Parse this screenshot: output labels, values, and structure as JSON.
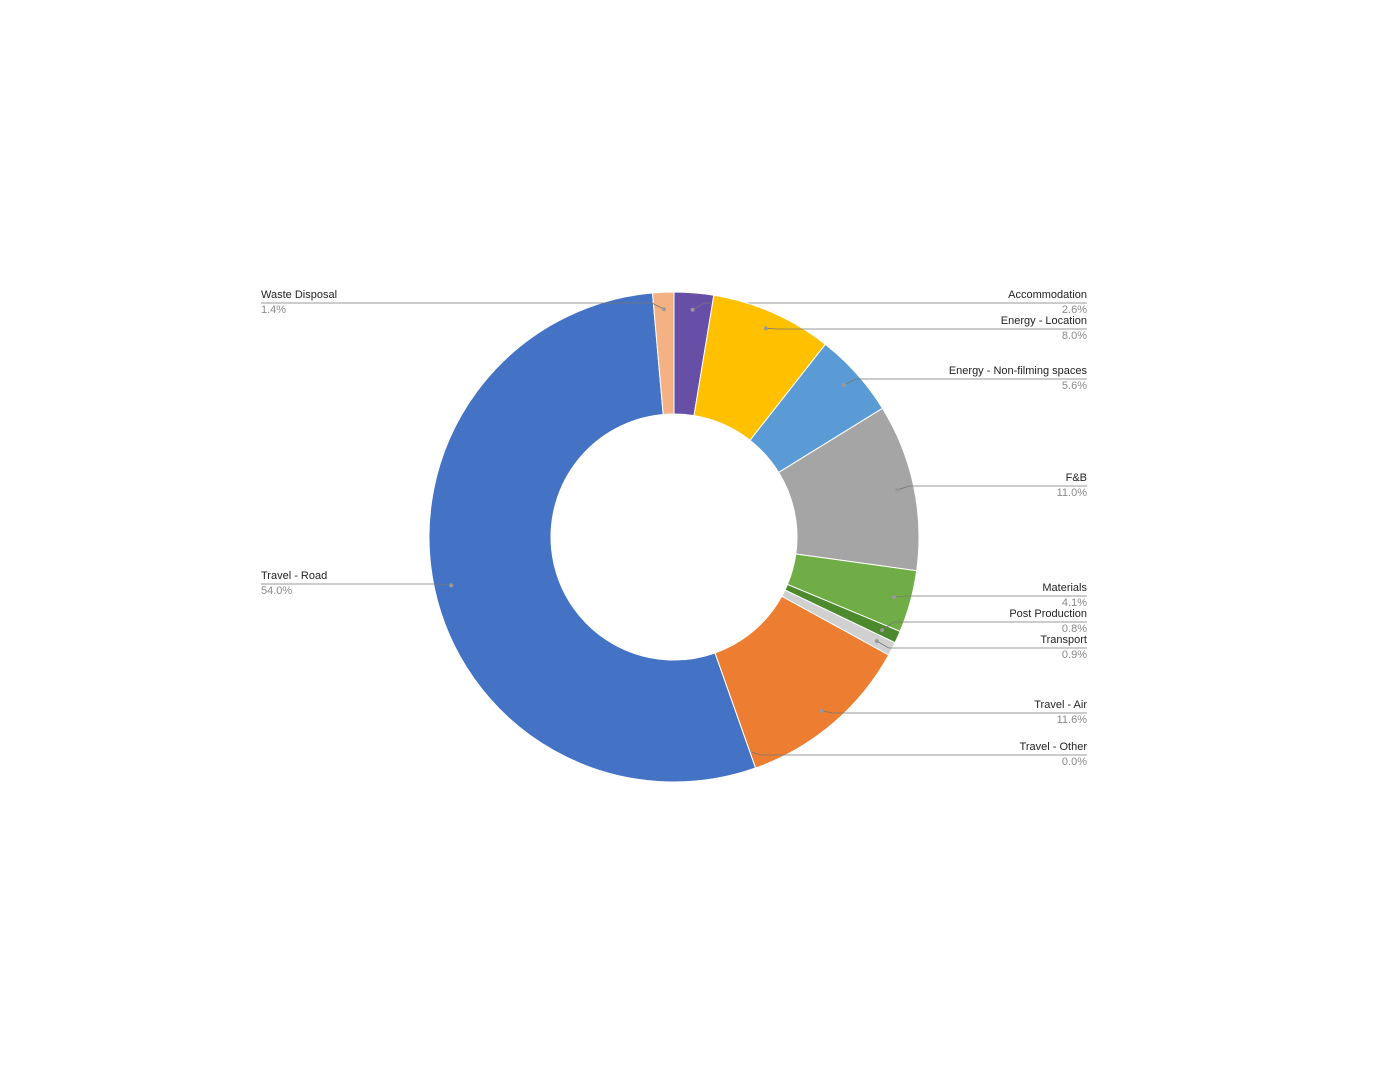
{
  "chart_data": {
    "type": "donut",
    "categories": [
      "Accommodation",
      "Energy - Location",
      "Energy - Non-filming spaces",
      "F&B",
      "Materials",
      "Post Production",
      "Transport",
      "Travel - Air",
      "Travel - Other",
      "Travel - Road",
      "Waste Disposal"
    ],
    "values": [
      2.6,
      8.0,
      5.6,
      11.0,
      4.1,
      0.8,
      0.9,
      11.6,
      0.0,
      54.0,
      1.4
    ],
    "value_labels": [
      "2.6%",
      "8.0%",
      "5.6%",
      "11.0%",
      "4.1%",
      "0.8%",
      "0.9%",
      "11.6%",
      "0.0%",
      "54.0%",
      "1.4%"
    ],
    "colors": [
      "#674ea7",
      "#ffc000",
      "#5b9bd5",
      "#a5a5a5",
      "#70ad47",
      "#4d8a2e",
      "#d0d0d0",
      "#ed7d31",
      "#9e480e",
      "#4472c4",
      "#f4b183"
    ]
  }
}
